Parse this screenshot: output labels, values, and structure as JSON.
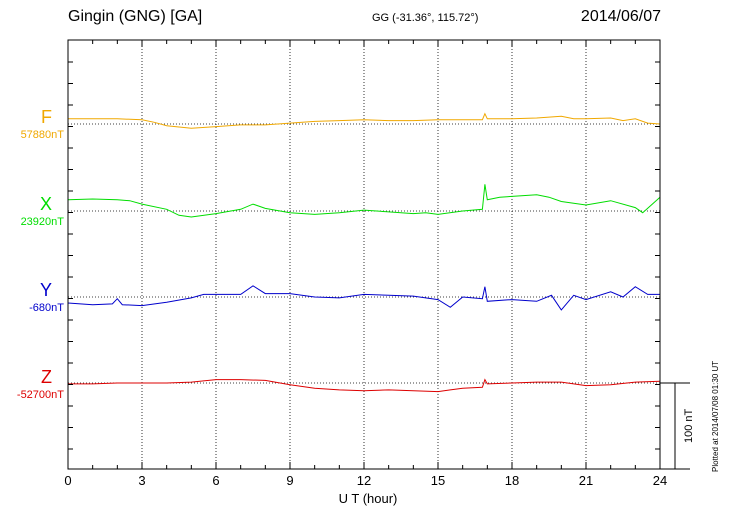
{
  "header": {
    "station": "Gingin (GNG)  [GA]",
    "coords": "GG (-31.36°, 115.72°)",
    "date": "2014/06/07"
  },
  "plotted_note": "Plotted at 2014/07/08 01:30 UT",
  "scale_bar": {
    "label": "100 nT",
    "value_nT": 100
  },
  "chart_data": {
    "type": "line",
    "title": "Gingin (GNG) [GA] 2014/06/07",
    "xlabel": "U T (hour)",
    "ylabel": "",
    "xlim": [
      0,
      24
    ],
    "x_ticks": [
      0,
      3,
      6,
      9,
      12,
      15,
      18,
      21,
      24
    ],
    "x_tick_labels": [
      "0",
      "3",
      "6",
      "9",
      "12",
      "15",
      "18",
      "21",
      "24"
    ],
    "grid": "vertical dotted every 3 hours, dotted baseline per channel",
    "series": [
      {
        "name": "F",
        "baseline_label": "57880nT",
        "color": "#f0a800",
        "x": [
          0,
          1,
          2,
          3,
          3.5,
          4,
          5,
          6,
          7,
          8,
          9,
          10,
          11,
          12,
          13,
          14,
          15,
          15.5,
          16,
          16.8,
          16.9,
          17,
          17.5,
          18,
          19,
          20,
          20.5,
          21,
          22,
          22.5,
          23,
          23.5,
          24
        ],
        "values": [
          6,
          6,
          6,
          5,
          2,
          -2,
          -5,
          -3,
          -1,
          -1,
          1,
          3,
          4,
          5,
          4,
          4,
          5,
          5,
          5,
          5,
          12,
          6,
          6,
          6,
          7,
          9,
          6,
          6,
          7,
          4,
          6,
          1,
          0
        ]
      },
      {
        "name": "X",
        "baseline_label": "23920nT",
        "color": "#00dd00",
        "x": [
          0,
          1,
          2,
          2.5,
          3,
          4,
          4.5,
          5,
          6,
          7,
          7.5,
          8,
          9,
          10,
          11,
          12,
          13,
          14,
          14.5,
          15,
          16,
          16.8,
          16.9,
          17,
          17.5,
          18,
          19,
          19.5,
          20,
          21,
          22,
          23,
          23.3,
          24
        ],
        "values": [
          13,
          14,
          13,
          12,
          8,
          2,
          -5,
          -7,
          -3,
          2,
          8,
          3,
          -2,
          -4,
          -2,
          1,
          -1,
          -3,
          -2,
          -4,
          0,
          2,
          31,
          13,
          16,
          17,
          19,
          16,
          11,
          7,
          12,
          4,
          -2,
          16
        ]
      },
      {
        "name": "Y",
        "baseline_label": "-680nT",
        "color": "#0000cc",
        "x": [
          0,
          1,
          1.8,
          2,
          2.2,
          3,
          4,
          5,
          5.5,
          6,
          7,
          7.5,
          8,
          9,
          10,
          11,
          12,
          13,
          14,
          15,
          15.5,
          16,
          16.8,
          16.9,
          17,
          18,
          19,
          19.6,
          20,
          20.5,
          21,
          22,
          22.5,
          23,
          23.5,
          24
        ],
        "values": [
          -7,
          -9,
          -8,
          -2,
          -9,
          -10,
          -6,
          -1,
          3,
          3,
          3,
          13,
          4,
          4,
          0,
          -1,
          3,
          2,
          1,
          -3,
          -12,
          0,
          -2,
          12,
          -5,
          -3,
          -5,
          2,
          -15,
          2,
          -3,
          6,
          0,
          12,
          3,
          3
        ]
      },
      {
        "name": "Z",
        "baseline_label": "-52700nT",
        "color": "#dd0000",
        "x": [
          0,
          1,
          2,
          3,
          4,
          5,
          6,
          7,
          8,
          9,
          10,
          11,
          12,
          13,
          14,
          15,
          15.5,
          16,
          16.8,
          16.9,
          17,
          18,
          19,
          20,
          21,
          22,
          23,
          24
        ],
        "values": [
          -1,
          -1,
          0,
          0,
          0,
          1,
          4,
          4,
          3,
          -2,
          -6,
          -8,
          -9,
          -8,
          -9,
          -10,
          -8,
          -6,
          -5,
          4,
          -1,
          0,
          1,
          1,
          -3,
          -2,
          1,
          2
        ]
      }
    ]
  }
}
